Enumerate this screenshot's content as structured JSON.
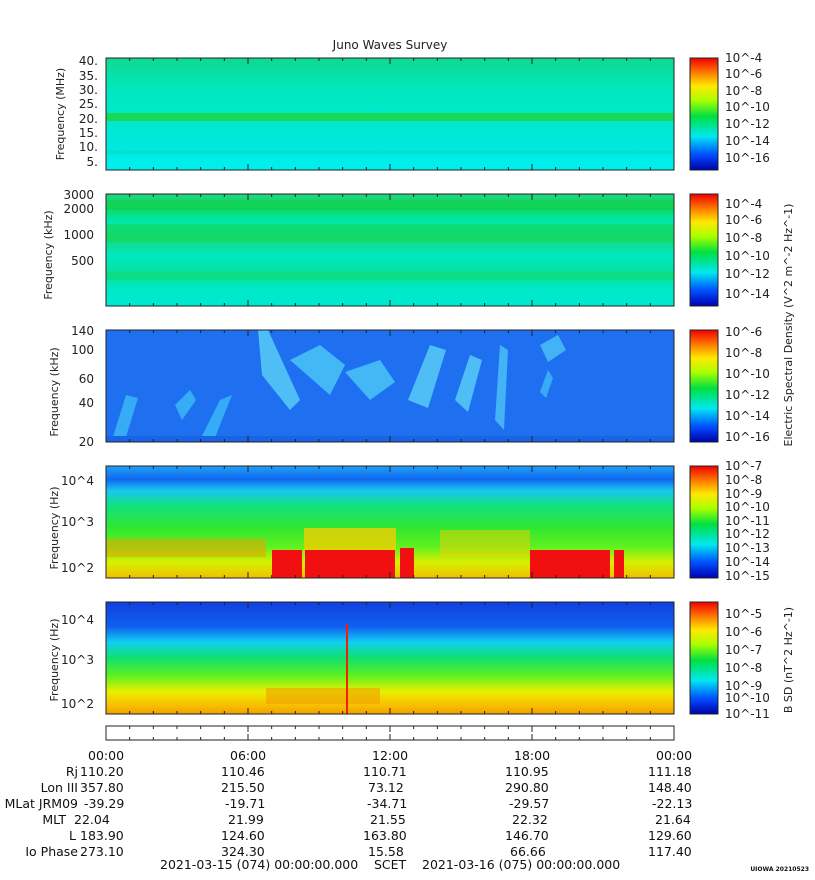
{
  "page": {
    "title": "Juno Waves Survey",
    "credit": "UIOWA 20210523"
  },
  "colors": {
    "cyan": "#00e8f0",
    "green": "#10d850",
    "blue": "#1e6ef0",
    "red": "#f01010",
    "yellow": "#f0e000"
  },
  "chart_data": [
    {
      "type": "heatmap",
      "panel": "high-frequency-MHz",
      "ylabel": "Frequency (MHz)",
      "yticks": [
        "40.",
        "35.",
        "30.",
        "25.",
        "20.",
        "15.",
        "10.",
        "5."
      ],
      "colorbar": {
        "ticks": [
          "10^-4",
          "10^-6",
          "10^-8",
          "10^-10",
          "10^-12",
          "10^-14",
          "10^-16"
        ],
        "label": ""
      }
    },
    {
      "type": "heatmap",
      "panel": "high-frequency-kHz",
      "ylabel": "Frequency (kHz)",
      "yticks": [
        "3000",
        "2000",
        "1000",
        "500"
      ],
      "colorbar": {
        "ticks": [
          "10^-4",
          "10^-6",
          "10^-8",
          "10^-10",
          "10^-12",
          "10^-14"
        ],
        "label": "Electric Spectral Density (V^2 m^-2 Hz^-1)"
      }
    },
    {
      "type": "heatmap",
      "panel": "mid-frequency-kHz",
      "ylabel": "Frequency (kHz)",
      "yticks": [
        "140",
        "100",
        "60",
        "40",
        "20"
      ],
      "colorbar": {
        "ticks": [
          "10^-6",
          "10^-8",
          "10^-10",
          "10^-12",
          "10^-14",
          "10^-16"
        ],
        "label": ""
      }
    },
    {
      "type": "heatmap",
      "panel": "low-frequency-electric",
      "ylabel": "Frequency (Hz)",
      "yticks": [
        "10^4",
        "10^3",
        "10^2"
      ],
      "colorbar": {
        "ticks": [
          "10^-7",
          "10^-8",
          "10^-9",
          "10^-10",
          "10^-11",
          "10^-12",
          "10^-13",
          "10^-14",
          "10^-15"
        ],
        "label": ""
      }
    },
    {
      "type": "heatmap",
      "panel": "low-frequency-magnetic",
      "ylabel": "Frequency (Hz)",
      "yticks": [
        "10^4",
        "10^3",
        "10^2"
      ],
      "colorbar": {
        "ticks": [
          "10^-5",
          "10^-6",
          "10^-7",
          "10^-8",
          "10^-9",
          "10^-10",
          "10^-11"
        ],
        "label": "B SD (nT^2 Hz^-1)"
      }
    }
  ],
  "ephemeris": {
    "columns": [
      "00:00",
      "06:00",
      "12:00",
      "18:00",
      "00:00"
    ],
    "rows": [
      {
        "label": "Rj",
        "values": [
          "110.20",
          "110.46",
          "110.71",
          "110.95",
          "111.18"
        ]
      },
      {
        "label": "Lon III",
        "values": [
          "357.80",
          "215.50",
          "73.12",
          "290.80",
          "148.40"
        ]
      },
      {
        "label": "MLat JRM09",
        "values": [
          "-39.29",
          "-19.71",
          "-34.71",
          "-29.57",
          "-22.13"
        ]
      },
      {
        "label": "MLT",
        "values": [
          "22.04",
          "21.99",
          "21.55",
          "22.32",
          "21.64"
        ]
      },
      {
        "label": "L",
        "values": [
          "183.90",
          "124.60",
          "163.80",
          "146.70",
          "129.60"
        ]
      },
      {
        "label": "Io Phase",
        "values": [
          "273.10",
          "324.30",
          "15.58",
          "66.66",
          "117.40"
        ]
      }
    ]
  },
  "footer": {
    "start": "2021-03-15 (074) 00:00:00.000",
    "scet": "SCET",
    "end": "2021-03-16 (075) 00:00:00.000"
  }
}
